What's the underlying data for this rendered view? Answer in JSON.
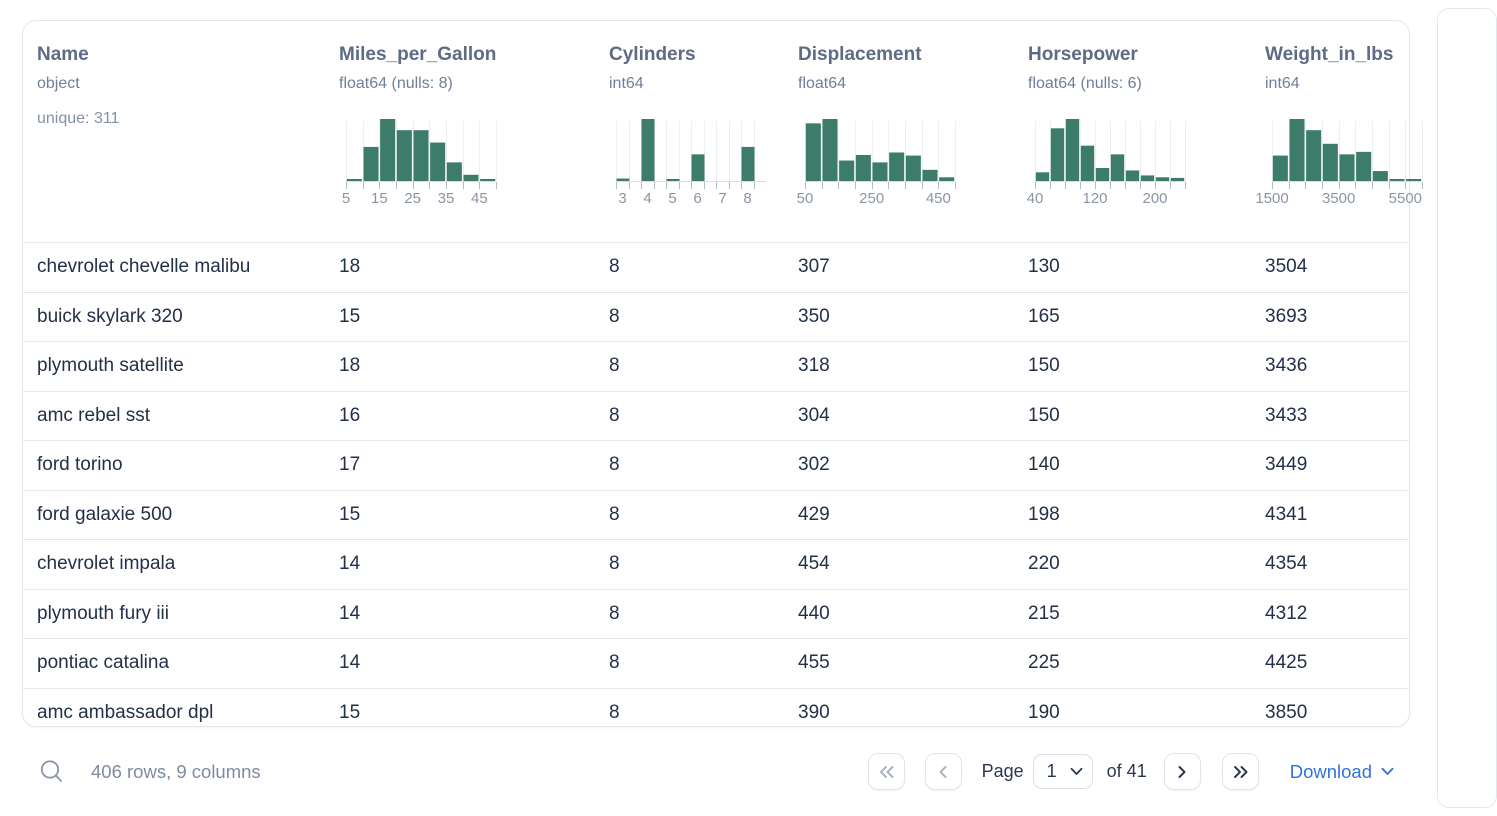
{
  "colors": {
    "histogram_bar": "#3d7c6b",
    "link_blue": "#3173de",
    "header_slate": "#5d6b85",
    "row_text": "#223048"
  },
  "table": {
    "columns": [
      {
        "name": "Name",
        "type": "object",
        "extra": "unique: 311",
        "histogram": null
      },
      {
        "name": "Miles_per_Gallon",
        "type": "float64 (nulls: 8)",
        "extra": null,
        "histogram": {
          "style": "contiguous",
          "bar_heights": [
            3,
            55,
            100,
            82,
            82,
            62,
            30,
            10,
            3
          ],
          "tick_labels": [
            "5",
            "15",
            "25",
            "35",
            "45"
          ],
          "tick_label_slots": [
            0,
            2,
            4,
            6,
            8
          ]
        }
      },
      {
        "name": "Cylinders",
        "type": "int64",
        "extra": null,
        "histogram": {
          "style": "separated",
          "bar_heights": [
            4,
            100,
            3,
            43,
            0,
            55
          ],
          "tick_labels": [
            "3",
            "4",
            "5",
            "6",
            "7",
            "8"
          ],
          "tick_label_slots": [
            0,
            1,
            2,
            3,
            4,
            5
          ]
        }
      },
      {
        "name": "Displacement",
        "type": "float64",
        "extra": null,
        "histogram": {
          "style": "contiguous",
          "bar_heights": [
            93,
            100,
            33,
            42,
            30,
            46,
            41,
            18,
            6
          ],
          "tick_labels": [
            "50",
            "250",
            "450"
          ],
          "tick_label_slots": [
            0,
            4,
            8
          ]
        }
      },
      {
        "name": "Horsepower",
        "type": "float64 (nulls: 6)",
        "extra": null,
        "histogram": {
          "style": "contiguous",
          "bar_heights": [
            14,
            85,
            100,
            57,
            21,
            43,
            17,
            9,
            6,
            5
          ],
          "tick_labels": [
            "40",
            "120",
            "200"
          ],
          "tick_label_slots": [
            0,
            4,
            8
          ]
        }
      },
      {
        "name": "Weight_in_lbs",
        "type": "int64",
        "extra": null,
        "histogram": {
          "style": "contiguous",
          "bar_heights": [
            41,
            100,
            82,
            60,
            43,
            47,
            16,
            3,
            2
          ],
          "tick_labels": [
            "1500",
            "3500",
            "5500"
          ],
          "tick_label_slots": [
            0,
            4,
            8
          ]
        }
      }
    ],
    "rows": [
      [
        "chevrolet chevelle malibu",
        "18",
        "8",
        "307",
        "130",
        "3504"
      ],
      [
        "buick skylark 320",
        "15",
        "8",
        "350",
        "165",
        "3693"
      ],
      [
        "plymouth satellite",
        "18",
        "8",
        "318",
        "150",
        "3436"
      ],
      [
        "amc rebel sst",
        "16",
        "8",
        "304",
        "150",
        "3433"
      ],
      [
        "ford torino",
        "17",
        "8",
        "302",
        "140",
        "3449"
      ],
      [
        "ford galaxie 500",
        "15",
        "8",
        "429",
        "198",
        "4341"
      ],
      [
        "chevrolet impala",
        "14",
        "8",
        "454",
        "220",
        "4354"
      ],
      [
        "plymouth fury iii",
        "14",
        "8",
        "440",
        "215",
        "4312"
      ],
      [
        "pontiac catalina",
        "14",
        "8",
        "455",
        "225",
        "4425"
      ],
      [
        "amc ambassador dpl",
        "15",
        "8",
        "390",
        "190",
        "3850"
      ]
    ]
  },
  "footer": {
    "summary": "406 rows, 9 columns",
    "page_label": "Page",
    "page_value": "1",
    "of_label": "of 41",
    "download_label": "Download"
  }
}
